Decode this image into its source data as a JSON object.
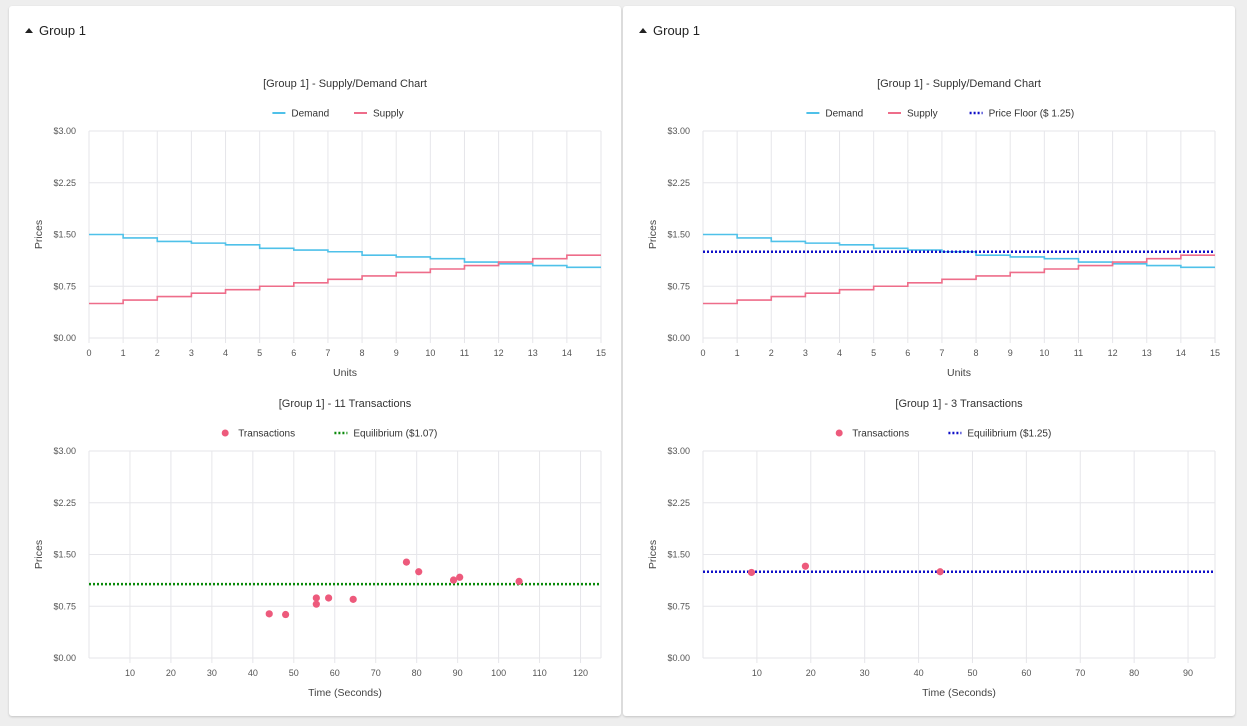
{
  "colors": {
    "demand": "#4fc1e9",
    "supply": "#ee6d8a",
    "transactions": "#ed5a7c",
    "equilibrium_green": "#0a8a0a",
    "dotted_blue": "#1010c8",
    "grid": "#e6e6ea"
  },
  "panels": [
    {
      "header": "Group 1",
      "chart_data": [
        {
          "type": "line",
          "title": "[Group 1] - Supply/Demand Chart",
          "xlabel": "Units",
          "ylabel": "Prices",
          "xlim": [
            0,
            15
          ],
          "ylim": [
            0,
            3
          ],
          "x_ticks": [
            "0",
            "1",
            "2",
            "3",
            "4",
            "5",
            "6",
            "7",
            "8",
            "9",
            "10",
            "11",
            "12",
            "13",
            "14",
            "15"
          ],
          "y_ticks": [
            "$0.00",
            "$0.75",
            "$1.50",
            "$2.25",
            "$3.00"
          ],
          "series": [
            {
              "name": "Demand",
              "color_key": "demand",
              "style": "step",
              "values": [
                1.5,
                1.45,
                1.4,
                1.375,
                1.35,
                1.3,
                1.275,
                1.25,
                1.2,
                1.175,
                1.15,
                1.1,
                1.075,
                1.05,
                1.025
              ]
            },
            {
              "name": "Supply",
              "color_key": "supply",
              "style": "step",
              "values": [
                0.5,
                0.55,
                0.6,
                0.65,
                0.7,
                0.75,
                0.8,
                0.85,
                0.9,
                0.95,
                1.0,
                1.05,
                1.1,
                1.15,
                1.2
              ]
            }
          ],
          "hlines": [],
          "legend": [
            {
              "label": "Demand",
              "kind": "line",
              "color_key": "demand"
            },
            {
              "label": "Supply",
              "kind": "line",
              "color_key": "supply"
            }
          ],
          "legend_position": "top-center",
          "grid": true
        },
        {
          "type": "scatter",
          "title": "[Group 1] - 11 Transactions",
          "xlabel": "Time (Seconds)",
          "ylabel": "Prices",
          "xlim": [
            0,
            125
          ],
          "ylim": [
            0,
            3
          ],
          "x_ticks": [
            "10",
            "20",
            "30",
            "40",
            "50",
            "60",
            "70",
            "80",
            "90",
            "100",
            "110",
            "120"
          ],
          "y_ticks": [
            "$0.00",
            "$0.75",
            "$1.50",
            "$2.25",
            "$3.00"
          ],
          "points": [
            {
              "x": 44,
              "y": 0.64
            },
            {
              "x": 48,
              "y": 0.63
            },
            {
              "x": 55.5,
              "y": 0.78
            },
            {
              "x": 55.5,
              "y": 0.87
            },
            {
              "x": 58.5,
              "y": 0.87
            },
            {
              "x": 64.5,
              "y": 0.85
            },
            {
              "x": 77.5,
              "y": 1.39
            },
            {
              "x": 80.5,
              "y": 1.25
            },
            {
              "x": 89,
              "y": 1.13
            },
            {
              "x": 90.5,
              "y": 1.17
            },
            {
              "x": 105,
              "y": 1.11
            }
          ],
          "point_color_key": "transactions",
          "hlines": [
            {
              "y": 1.07,
              "color_key": "equilibrium_green"
            }
          ],
          "legend": [
            {
              "label": "Transactions",
              "kind": "dot",
              "color_key": "transactions"
            },
            {
              "label": "Equilibrium ($1.07)",
              "kind": "dotted",
              "color_key": "equilibrium_green"
            }
          ],
          "legend_position": "top-center",
          "grid": true
        }
      ]
    },
    {
      "header": "Group 1",
      "chart_data": [
        {
          "type": "line",
          "title": "[Group 1] - Supply/Demand Chart",
          "xlabel": "Units",
          "ylabel": "Prices",
          "xlim": [
            0,
            15
          ],
          "ylim": [
            0,
            3
          ],
          "x_ticks": [
            "0",
            "1",
            "2",
            "3",
            "4",
            "5",
            "6",
            "7",
            "8",
            "9",
            "10",
            "11",
            "12",
            "13",
            "14",
            "15"
          ],
          "y_ticks": [
            "$0.00",
            "$0.75",
            "$1.50",
            "$2.25",
            "$3.00"
          ],
          "series": [
            {
              "name": "Demand",
              "color_key": "demand",
              "style": "step",
              "values": [
                1.5,
                1.45,
                1.4,
                1.375,
                1.35,
                1.3,
                1.275,
                1.25,
                1.2,
                1.175,
                1.15,
                1.1,
                1.075,
                1.05,
                1.025
              ]
            },
            {
              "name": "Supply",
              "color_key": "supply",
              "style": "step",
              "values": [
                0.5,
                0.55,
                0.6,
                0.65,
                0.7,
                0.75,
                0.8,
                0.85,
                0.9,
                0.95,
                1.0,
                1.05,
                1.1,
                1.15,
                1.2
              ]
            }
          ],
          "hlines": [
            {
              "y": 1.25,
              "color_key": "dotted_blue"
            }
          ],
          "legend": [
            {
              "label": "Demand",
              "kind": "line",
              "color_key": "demand"
            },
            {
              "label": "Supply",
              "kind": "line",
              "color_key": "supply"
            },
            {
              "label": "Price Floor ($ 1.25)",
              "kind": "dotted",
              "color_key": "dotted_blue"
            }
          ],
          "legend_position": "top-center",
          "grid": true
        },
        {
          "type": "scatter",
          "title": "[Group 1] - 3 Transactions",
          "xlabel": "Time (Seconds)",
          "ylabel": "Prices",
          "xlim": [
            0,
            95
          ],
          "ylim": [
            0,
            3
          ],
          "x_ticks": [
            "10",
            "20",
            "30",
            "40",
            "50",
            "60",
            "70",
            "80",
            "90"
          ],
          "y_ticks": [
            "$0.00",
            "$0.75",
            "$1.50",
            "$2.25",
            "$3.00"
          ],
          "points": [
            {
              "x": 9,
              "y": 1.24
            },
            {
              "x": 19,
              "y": 1.33
            },
            {
              "x": 44,
              "y": 1.25
            }
          ],
          "point_color_key": "transactions",
          "hlines": [
            {
              "y": 1.25,
              "color_key": "dotted_blue"
            }
          ],
          "legend": [
            {
              "label": "Transactions",
              "kind": "dot",
              "color_key": "transactions"
            },
            {
              "label": "Equilibrium ($1.25)",
              "kind": "dotted",
              "color_key": "dotted_blue"
            }
          ],
          "legend_position": "top-center",
          "grid": true
        }
      ]
    }
  ]
}
